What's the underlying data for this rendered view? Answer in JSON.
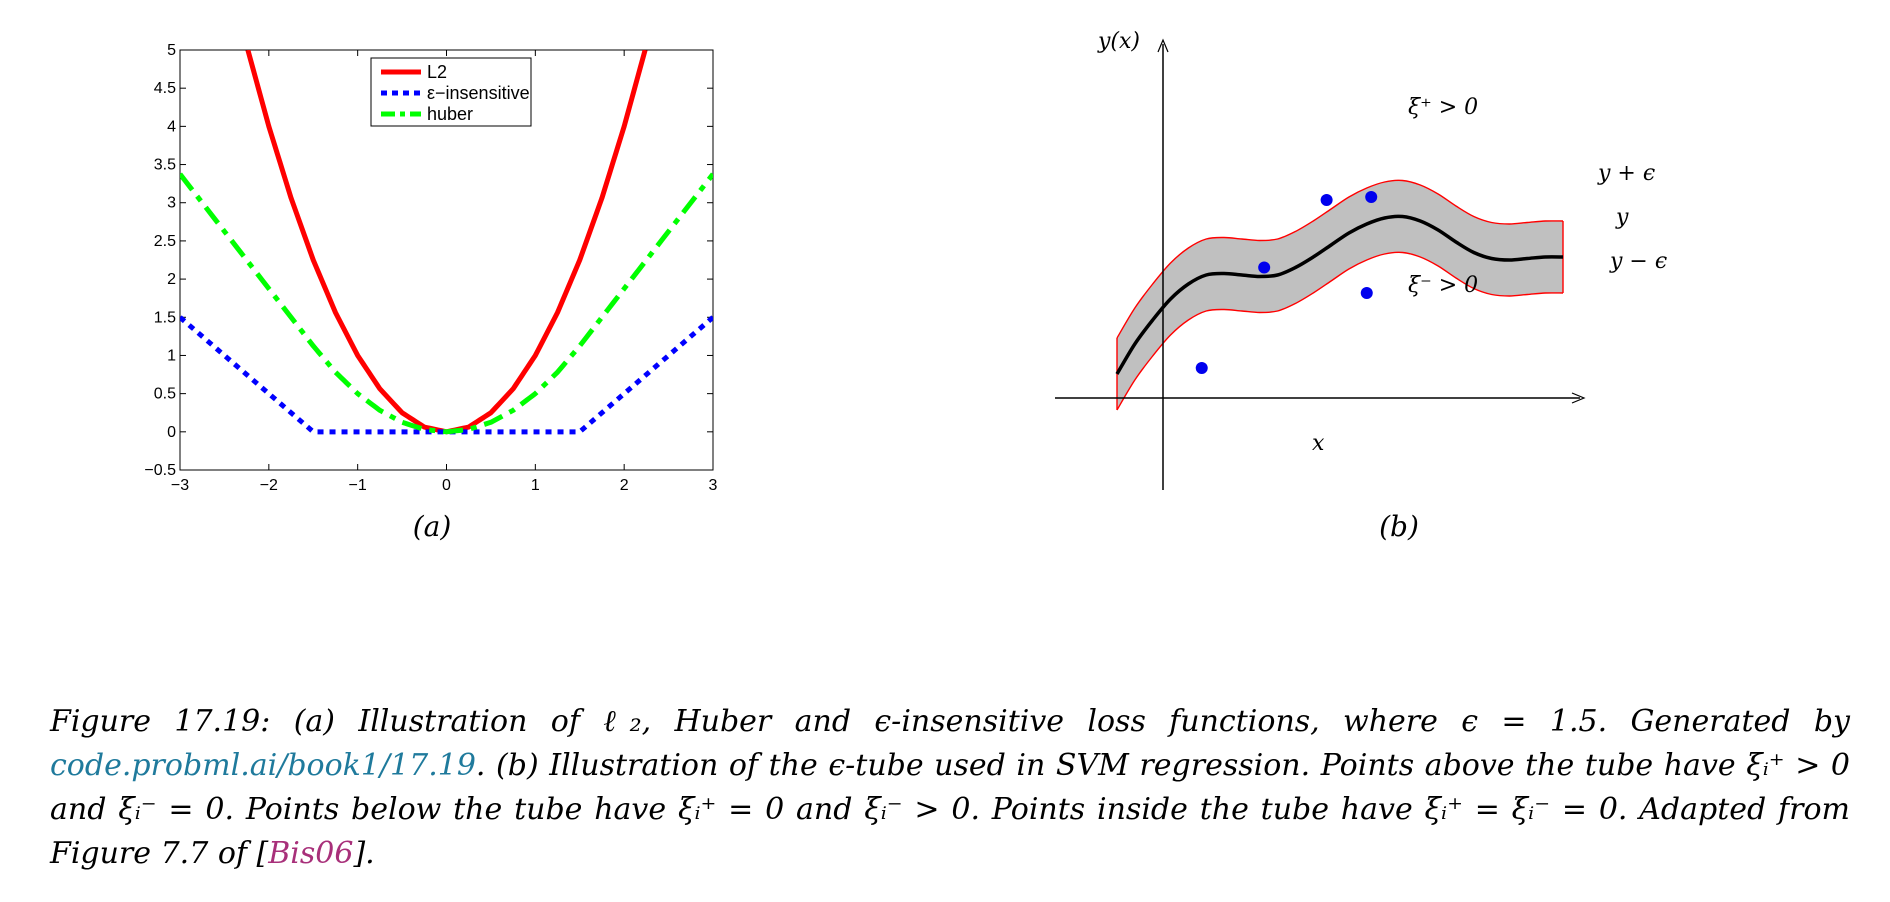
{
  "chart_data": [
    {
      "type": "line",
      "panel_label": "(a)",
      "xlim": [
        -3,
        3
      ],
      "ylim": [
        -0.5,
        5
      ],
      "x_ticks": [
        "−3",
        "−2",
        "−1",
        "0",
        "1",
        "2",
        "3"
      ],
      "x_tick_values": [
        -3,
        -2,
        -1,
        0,
        1,
        2,
        3
      ],
      "y_ticks": [
        "−0.5",
        "0",
        "0.5",
        "1",
        "1.5",
        "2",
        "2.5",
        "3",
        "3.5",
        "4",
        "4.5",
        "5"
      ],
      "y_tick_values": [
        -0.5,
        0,
        0.5,
        1,
        1.5,
        2,
        2.5,
        3,
        3.5,
        4,
        4.5,
        5
      ],
      "epsilon": 1.5,
      "legend_placement": "top-center",
      "grid": false,
      "series": [
        {
          "name": "L2",
          "color": "#ff0000",
          "style": "solid",
          "x": [
            -2.236,
            -2,
            -1.75,
            -1.5,
            -1.25,
            -1,
            -0.75,
            -0.5,
            -0.25,
            0,
            0.25,
            0.5,
            0.75,
            1,
            1.25,
            1.5,
            1.75,
            2,
            2.236
          ],
          "y": [
            5,
            4,
            3.0625,
            2.25,
            1.5625,
            1,
            0.5625,
            0.25,
            0.0625,
            0,
            0.0625,
            0.25,
            0.5625,
            1,
            1.5625,
            2.25,
            3.0625,
            4,
            5
          ]
        },
        {
          "name": "ε−insensitive",
          "color": "#0000ff",
          "style": "dotted",
          "x": [
            -3,
            -1.5,
            1.5,
            3
          ],
          "y": [
            1.5,
            0,
            0,
            1.5
          ]
        },
        {
          "name": "huber",
          "color": "#00ff00",
          "style": "dashdot",
          "x": [
            -3,
            -2.5,
            -2,
            -1.5,
            -1.25,
            -1,
            -0.75,
            -0.5,
            -0.25,
            0,
            0.25,
            0.5,
            0.75,
            1,
            1.25,
            1.5,
            2,
            2.5,
            3
          ],
          "y": [
            3.375,
            2.625,
            1.875,
            1.125,
            0.78125,
            0.5,
            0.28125,
            0.125,
            0.03125,
            0,
            0.03125,
            0.125,
            0.28125,
            0.5,
            0.78125,
            1.125,
            1.875,
            2.625,
            3.375
          ]
        }
      ]
    },
    {
      "type": "diagram",
      "panel_label": "(b)",
      "y_axis_label": "y(x)",
      "x_axis_label": "x",
      "xlim": [
        0,
        10
      ],
      "ylim": [
        0,
        10
      ],
      "tube_epsilon": 1.2,
      "curve": {
        "x": [
          0.0,
          0.4,
          0.8,
          1.2,
          1.6,
          2.0,
          2.4,
          2.8,
          3.2,
          3.6,
          4.0,
          4.4,
          4.8,
          5.2,
          5.6,
          6.0,
          6.4,
          6.8,
          7.2,
          7.6,
          8.0,
          8.4,
          8.8,
          9.2,
          9.6,
          10.0
        ],
        "y": [
          2.2,
          3.2,
          4.0,
          4.7,
          5.2,
          5.5,
          5.55,
          5.5,
          5.45,
          5.5,
          5.75,
          6.1,
          6.5,
          6.9,
          7.2,
          7.4,
          7.45,
          7.3,
          7.0,
          6.6,
          6.25,
          6.05,
          6.0,
          6.05,
          6.1,
          6.1
        ]
      },
      "points": [
        {
          "x": 1.9,
          "y": 2.4
        },
        {
          "x": 3.3,
          "y": 5.75
        },
        {
          "x": 4.7,
          "y": 8.0
        },
        {
          "x": 5.6,
          "y": 4.9
        },
        {
          "x": 5.7,
          "y": 8.1
        }
      ],
      "labels": {
        "xi_plus": "ξ⁺ > 0",
        "xi_minus": "ξ⁻ > 0",
        "upper": "y + ϵ",
        "mid": "y",
        "lower": "y − ϵ"
      }
    }
  ],
  "caption": {
    "p1": "Figure 17.19: (a) Illustration of ℓ₂, Huber and ϵ-insensitive loss functions, where ϵ = 1.5. Generated by ",
    "link1": "code.probml.ai/book1/17.19",
    "p2": ". (b) Illustration of the ϵ-tube used in SVM regression. Points above the tube have ξᵢ⁺ > 0 and ξᵢ⁻ = 0. Points below the tube have ξᵢ⁺ = 0 and ξᵢ⁻ > 0. Points inside the tube have ξᵢ⁺ = ξᵢ⁻ = 0. Adapted from Figure 7.7 of [",
    "link2": "Bis06",
    "p3": "]."
  }
}
